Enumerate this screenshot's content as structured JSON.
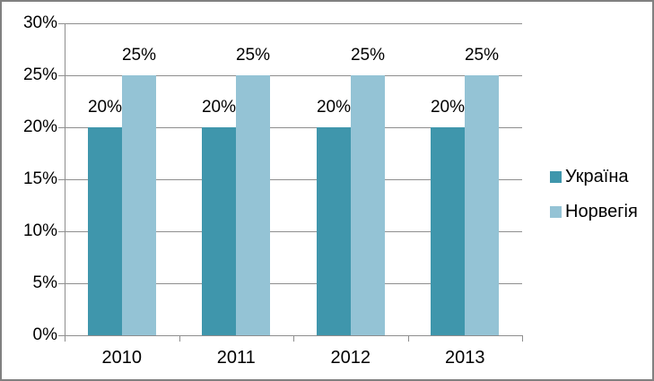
{
  "chart_data": {
    "type": "bar",
    "title": "",
    "xlabel": "",
    "ylabel": "",
    "categories": [
      "2010",
      "2011",
      "2012",
      "2013"
    ],
    "series": [
      {
        "name": "Україна",
        "color": "#3F96AC",
        "values": [
          20,
          20,
          20,
          20
        ]
      },
      {
        "name": "Норвегія",
        "color": "#94C3D5",
        "values": [
          25,
          25,
          25,
          25
        ]
      }
    ],
    "data_labels": [
      [
        "20%",
        "20%",
        "20%",
        "20%"
      ],
      [
        "25%",
        "25%",
        "25%",
        "25%"
      ]
    ],
    "label_suffix": "%",
    "ylim": [
      0,
      30
    ],
    "y_step": 5,
    "y_tick_labels": [
      "0%",
      "5%",
      "10%",
      "15%",
      "20%",
      "25%",
      "30%"
    ],
    "grid": true,
    "legend_position": "right"
  },
  "style": {
    "grid_color": "#8e8e8e",
    "frame_border_color": "#808080",
    "text_color": "#000000",
    "background": "#ffffff"
  }
}
